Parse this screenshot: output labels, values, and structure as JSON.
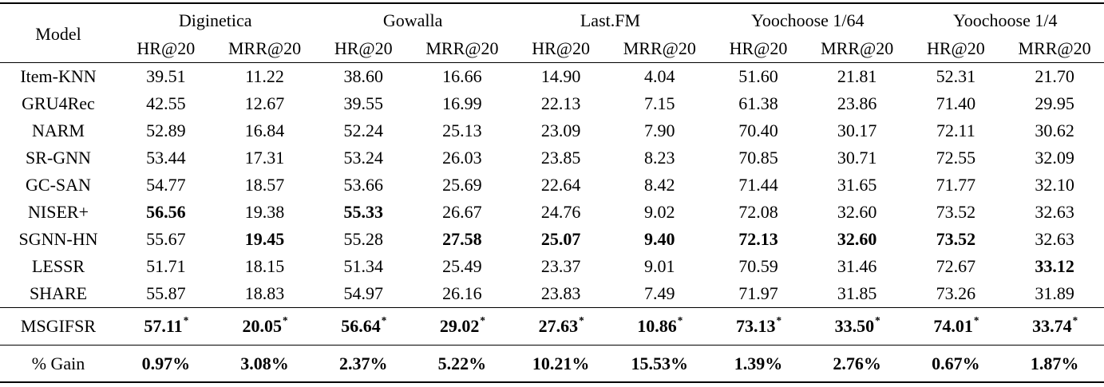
{
  "table": {
    "model_header": "Model",
    "groups": [
      "Diginetica",
      "Gowalla",
      "Last.FM",
      "Yoochoose 1/64",
      "Yoochoose 1/4"
    ],
    "metrics": [
      "HR@20",
      "MRR@20"
    ],
    "star_symbol": "*",
    "sections": [
      {
        "name": "baselines",
        "rows": [
          {
            "model": "Item-KNN",
            "cells": [
              {
                "value": "39.51"
              },
              {
                "value": "11.22"
              },
              {
                "value": "38.60"
              },
              {
                "value": "16.66"
              },
              {
                "value": "14.90"
              },
              {
                "value": "4.04"
              },
              {
                "value": "51.60"
              },
              {
                "value": "21.81"
              },
              {
                "value": "52.31"
              },
              {
                "value": "21.70"
              }
            ]
          },
          {
            "model": "GRU4Rec",
            "cells": [
              {
                "value": "42.55"
              },
              {
                "value": "12.67"
              },
              {
                "value": "39.55"
              },
              {
                "value": "16.99"
              },
              {
                "value": "22.13"
              },
              {
                "value": "7.15"
              },
              {
                "value": "61.38"
              },
              {
                "value": "23.86"
              },
              {
                "value": "71.40"
              },
              {
                "value": "29.95"
              }
            ]
          },
          {
            "model": "NARM",
            "cells": [
              {
                "value": "52.89"
              },
              {
                "value": "16.84"
              },
              {
                "value": "52.24"
              },
              {
                "value": "25.13"
              },
              {
                "value": "23.09"
              },
              {
                "value": "7.90"
              },
              {
                "value": "70.40"
              },
              {
                "value": "30.17"
              },
              {
                "value": "72.11"
              },
              {
                "value": "30.62"
              }
            ]
          },
          {
            "model": "SR-GNN",
            "cells": [
              {
                "value": "53.44"
              },
              {
                "value": "17.31"
              },
              {
                "value": "53.24"
              },
              {
                "value": "26.03"
              },
              {
                "value": "23.85"
              },
              {
                "value": "8.23"
              },
              {
                "value": "70.85"
              },
              {
                "value": "30.71"
              },
              {
                "value": "72.55"
              },
              {
                "value": "32.09"
              }
            ]
          },
          {
            "model": "GC-SAN",
            "cells": [
              {
                "value": "54.77"
              },
              {
                "value": "18.57"
              },
              {
                "value": "53.66"
              },
              {
                "value": "25.69"
              },
              {
                "value": "22.64"
              },
              {
                "value": "8.42"
              },
              {
                "value": "71.44"
              },
              {
                "value": "31.65"
              },
              {
                "value": "71.77"
              },
              {
                "value": "32.10"
              }
            ]
          },
          {
            "model": "NISER+",
            "cells": [
              {
                "value": "56.56",
                "bold": true
              },
              {
                "value": "19.38"
              },
              {
                "value": "55.33",
                "bold": true
              },
              {
                "value": "26.67"
              },
              {
                "value": "24.76"
              },
              {
                "value": "9.02"
              },
              {
                "value": "72.08"
              },
              {
                "value": "32.60"
              },
              {
                "value": "73.52"
              },
              {
                "value": "32.63"
              }
            ]
          },
          {
            "model": "SGNN-HN",
            "cells": [
              {
                "value": "55.67"
              },
              {
                "value": "19.45",
                "bold": true
              },
              {
                "value": "55.28"
              },
              {
                "value": "27.58",
                "bold": true
              },
              {
                "value": "25.07",
                "bold": true
              },
              {
                "value": "9.40",
                "bold": true
              },
              {
                "value": "72.13",
                "bold": true
              },
              {
                "value": "32.60",
                "bold": true
              },
              {
                "value": "73.52",
                "bold": true
              },
              {
                "value": "32.63"
              }
            ]
          },
          {
            "model": "LESSR",
            "cells": [
              {
                "value": "51.71"
              },
              {
                "value": "18.15"
              },
              {
                "value": "51.34"
              },
              {
                "value": "25.49"
              },
              {
                "value": "23.37"
              },
              {
                "value": "9.01"
              },
              {
                "value": "70.59"
              },
              {
                "value": "31.46"
              },
              {
                "value": "72.67"
              },
              {
                "value": "33.12",
                "bold": true
              }
            ]
          },
          {
            "model": "SHARE",
            "cells": [
              {
                "value": "55.87"
              },
              {
                "value": "18.83"
              },
              {
                "value": "54.97"
              },
              {
                "value": "26.16"
              },
              {
                "value": "23.83"
              },
              {
                "value": "7.49"
              },
              {
                "value": "71.97"
              },
              {
                "value": "31.85"
              },
              {
                "value": "73.26"
              },
              {
                "value": "31.89"
              }
            ]
          }
        ]
      },
      {
        "name": "result",
        "rows": [
          {
            "model": "MSGIFSR",
            "cells": [
              {
                "value": "57.11",
                "bold": true,
                "star": true
              },
              {
                "value": "20.05",
                "bold": true,
                "star": true
              },
              {
                "value": "56.64",
                "bold": true,
                "star": true
              },
              {
                "value": "29.02",
                "bold": true,
                "star": true
              },
              {
                "value": "27.63",
                "bold": true,
                "star": true
              },
              {
                "value": "10.86",
                "bold": true,
                "star": true
              },
              {
                "value": "73.13",
                "bold": true,
                "star": true
              },
              {
                "value": "33.50",
                "bold": true,
                "star": true
              },
              {
                "value": "74.01",
                "bold": true,
                "star": true
              },
              {
                "value": "33.74",
                "bold": true,
                "star": true
              }
            ]
          }
        ]
      },
      {
        "name": "gain",
        "rows": [
          {
            "model": "% Gain",
            "cells": [
              {
                "value": "0.97%",
                "bold": true
              },
              {
                "value": "3.08%",
                "bold": true
              },
              {
                "value": "2.37%",
                "bold": true
              },
              {
                "value": "5.22%",
                "bold": true
              },
              {
                "value": "10.21%",
                "bold": true
              },
              {
                "value": "15.53%",
                "bold": true
              },
              {
                "value": "1.39%",
                "bold": true
              },
              {
                "value": "2.76%",
                "bold": true
              },
              {
                "value": "0.67%",
                "bold": true
              },
              {
                "value": "1.87%",
                "bold": true
              }
            ]
          }
        ]
      }
    ]
  }
}
